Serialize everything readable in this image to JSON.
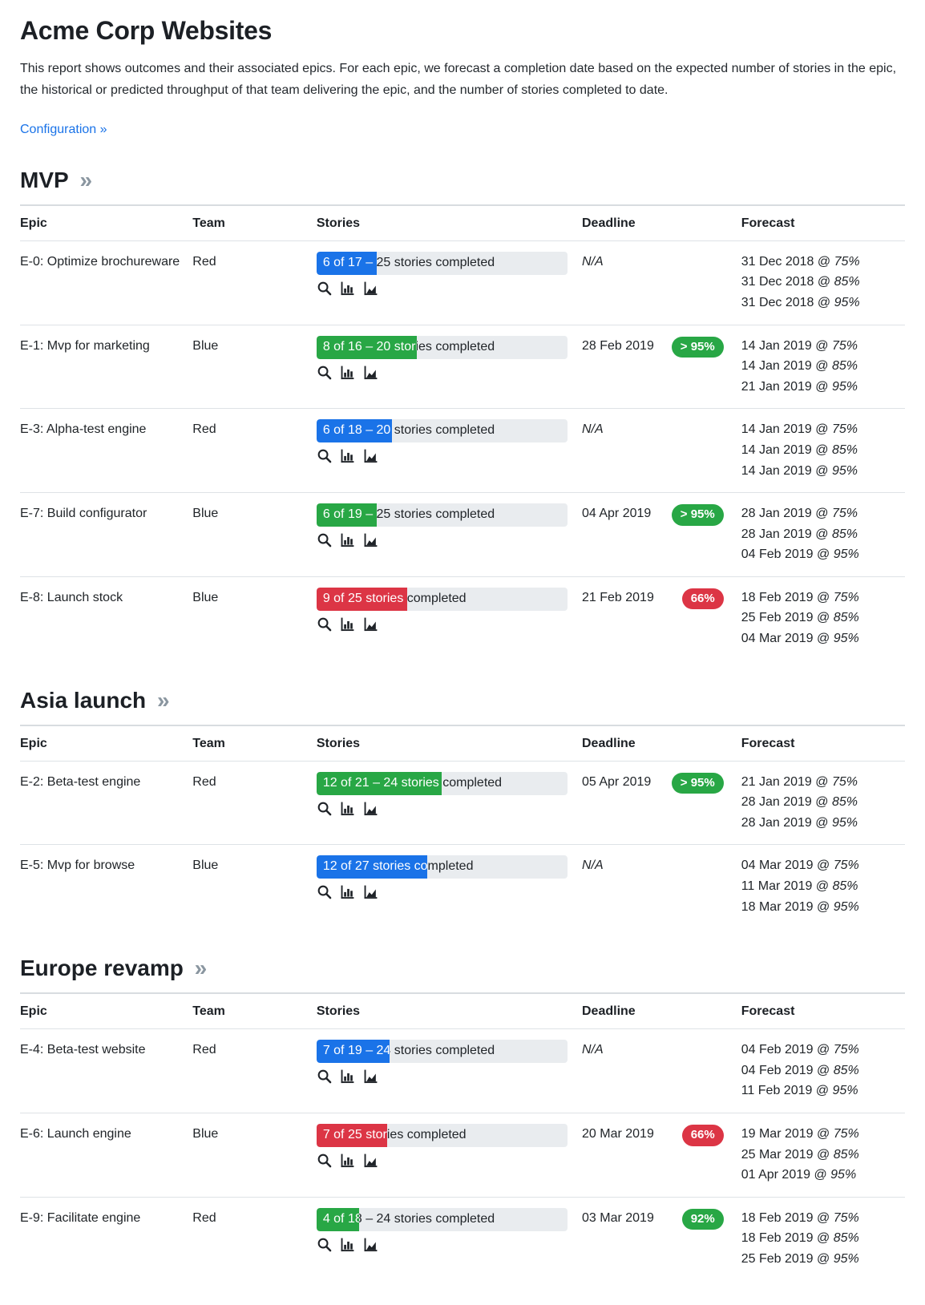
{
  "page": {
    "title": "Acme Corp Websites",
    "description": "This report shows outcomes and their associated epics. For each epic, we forecast a completion date based on the expected number of stories in the epic, the historical or predicted throughput of that team delivering the epic, and the number of stories completed to date.",
    "configuration_link": "Configuration »"
  },
  "colors": {
    "blue": "#1a73e8",
    "green": "#28a745",
    "red": "#dc3545",
    "track": "#e9ecef"
  },
  "table_headers": [
    "Epic",
    "Team",
    "Stories",
    "Deadline",
    "Forecast"
  ],
  "section_chevron": "»",
  "at_symbol": "@",
  "sections": [
    {
      "title": "MVP",
      "rows": [
        {
          "epic": "E-0: Optimize brochureware",
          "team": "Red",
          "stories_text": "6 of 17 – 25 stories completed",
          "progress_percent": 24,
          "progress_color": "blue",
          "deadline": "N/A",
          "badge": null,
          "forecasts": [
            {
              "date": "31 Dec 2018",
              "pct": "75%"
            },
            {
              "date": "31 Dec 2018",
              "pct": "85%"
            },
            {
              "date": "31 Dec 2018",
              "pct": "95%"
            }
          ]
        },
        {
          "epic": "E-1: Mvp for marketing",
          "team": "Blue",
          "stories_text": "8 of 16 – 20 stories completed",
          "progress_percent": 40,
          "progress_color": "green",
          "deadline": "28 Feb 2019",
          "badge": {
            "label": "> 95%",
            "color": "green"
          },
          "forecasts": [
            {
              "date": "14 Jan 2019",
              "pct": "75%"
            },
            {
              "date": "14 Jan 2019",
              "pct": "85%"
            },
            {
              "date": "21 Jan 2019",
              "pct": "95%"
            }
          ]
        },
        {
          "epic": "E-3: Alpha-test engine",
          "team": "Red",
          "stories_text": "6 of 18 – 20 stories completed",
          "progress_percent": 30,
          "progress_color": "blue",
          "deadline": "N/A",
          "badge": null,
          "forecasts": [
            {
              "date": "14 Jan 2019",
              "pct": "75%"
            },
            {
              "date": "14 Jan 2019",
              "pct": "85%"
            },
            {
              "date": "14 Jan 2019",
              "pct": "95%"
            }
          ]
        },
        {
          "epic": "E-7: Build configurator",
          "team": "Blue",
          "stories_text": "6 of 19 – 25 stories completed",
          "progress_percent": 24,
          "progress_color": "green",
          "deadline": "04 Apr 2019",
          "badge": {
            "label": "> 95%",
            "color": "green"
          },
          "forecasts": [
            {
              "date": "28 Jan 2019",
              "pct": "75%"
            },
            {
              "date": "28 Jan 2019",
              "pct": "85%"
            },
            {
              "date": "04 Feb 2019",
              "pct": "95%"
            }
          ]
        },
        {
          "epic": "E-8: Launch stock",
          "team": "Blue",
          "stories_text": "9 of 25 stories completed",
          "progress_percent": 36,
          "progress_color": "red",
          "deadline": "21 Feb 2019",
          "badge": {
            "label": "66%",
            "color": "red"
          },
          "forecasts": [
            {
              "date": "18 Feb 2019",
              "pct": "75%"
            },
            {
              "date": "25 Feb 2019",
              "pct": "85%"
            },
            {
              "date": "04 Mar 2019",
              "pct": "95%"
            }
          ]
        }
      ]
    },
    {
      "title": "Asia launch",
      "rows": [
        {
          "epic": "E-2: Beta-test engine",
          "team": "Red",
          "stories_text": "12 of 21 – 24 stories completed",
          "progress_percent": 50,
          "progress_color": "green",
          "deadline": "05 Apr 2019",
          "badge": {
            "label": "> 95%",
            "color": "green"
          },
          "forecasts": [
            {
              "date": "21 Jan 2019",
              "pct": "75%"
            },
            {
              "date": "28 Jan 2019",
              "pct": "85%"
            },
            {
              "date": "28 Jan 2019",
              "pct": "95%"
            }
          ]
        },
        {
          "epic": "E-5: Mvp for browse",
          "team": "Blue",
          "stories_text": "12 of 27 stories completed",
          "progress_percent": 44,
          "progress_color": "blue",
          "deadline": "N/A",
          "badge": null,
          "forecasts": [
            {
              "date": "04 Mar 2019",
              "pct": "75%"
            },
            {
              "date": "11 Mar 2019",
              "pct": "85%"
            },
            {
              "date": "18 Mar 2019",
              "pct": "95%"
            }
          ]
        }
      ]
    },
    {
      "title": "Europe revamp",
      "rows": [
        {
          "epic": "E-4: Beta-test website",
          "team": "Red",
          "stories_text": "7 of 19 – 24 stories completed",
          "progress_percent": 29,
          "progress_color": "blue",
          "deadline": "N/A",
          "badge": null,
          "forecasts": [
            {
              "date": "04 Feb 2019",
              "pct": "75%"
            },
            {
              "date": "04 Feb 2019",
              "pct": "85%"
            },
            {
              "date": "11 Feb 2019",
              "pct": "95%"
            }
          ]
        },
        {
          "epic": "E-6: Launch engine",
          "team": "Blue",
          "stories_text": "7 of 25 stories completed",
          "progress_percent": 28,
          "progress_color": "red",
          "deadline": "20 Mar 2019",
          "badge": {
            "label": "66%",
            "color": "red"
          },
          "forecasts": [
            {
              "date": "19 Mar 2019",
              "pct": "75%"
            },
            {
              "date": "25 Mar 2019",
              "pct": "85%"
            },
            {
              "date": "01 Apr 2019",
              "pct": "95%"
            }
          ]
        },
        {
          "epic": "E-9: Facilitate engine",
          "team": "Red",
          "stories_text": "4 of 18 – 24 stories completed",
          "progress_percent": 17,
          "progress_color": "green",
          "deadline": "03 Mar 2019",
          "badge": {
            "label": "92%",
            "color": "green"
          },
          "forecasts": [
            {
              "date": "18 Feb 2019",
              "pct": "75%"
            },
            {
              "date": "18 Feb 2019",
              "pct": "85%"
            },
            {
              "date": "25 Feb 2019",
              "pct": "95%"
            }
          ]
        }
      ]
    }
  ]
}
